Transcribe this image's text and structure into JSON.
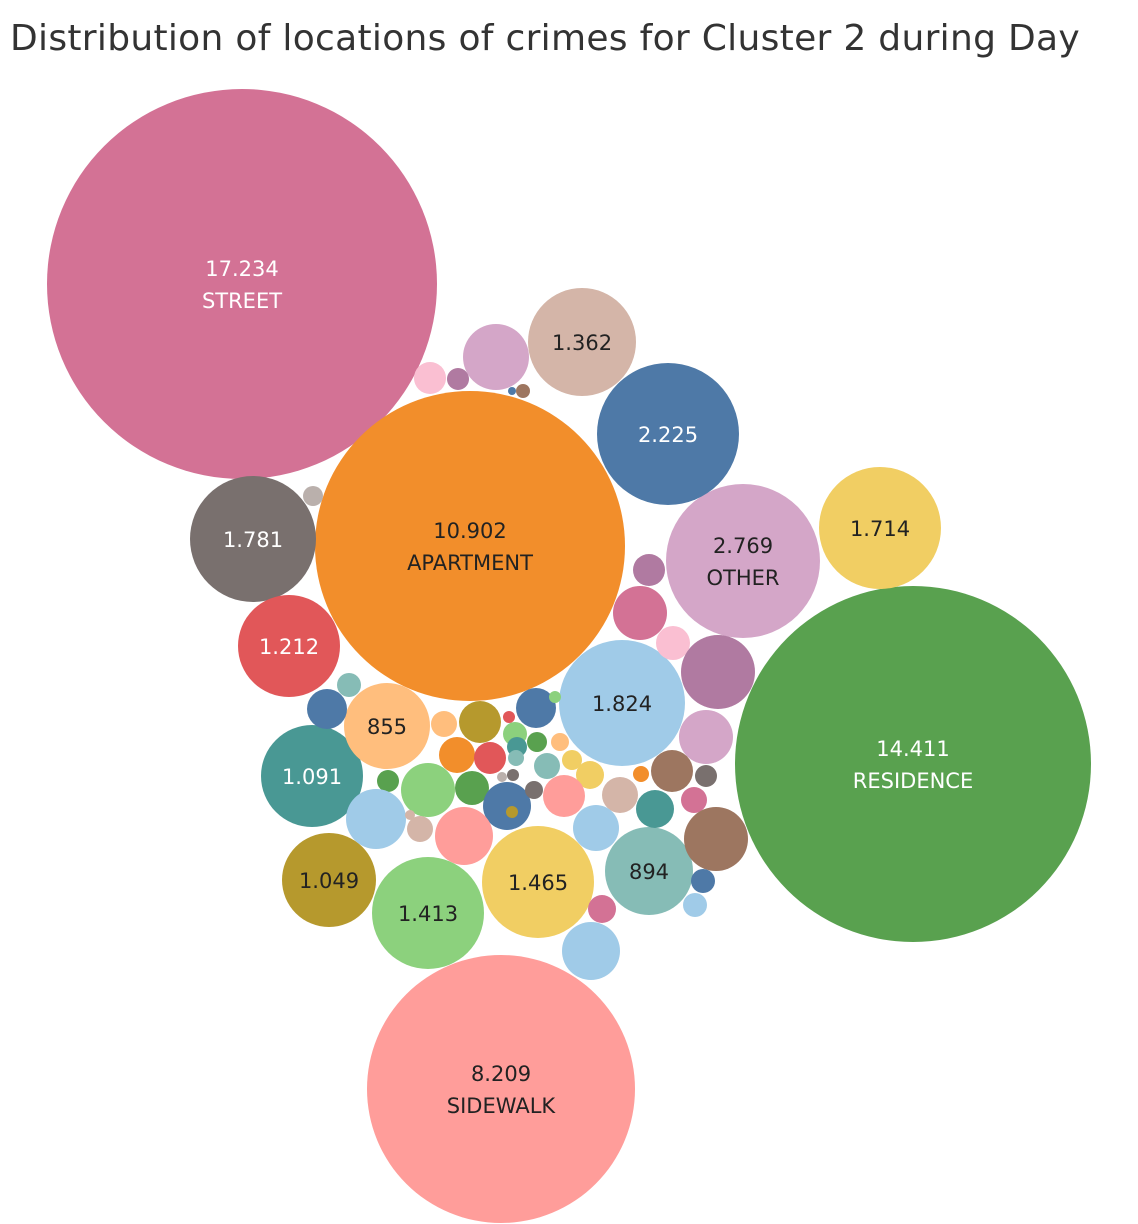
{
  "chart_data": {
    "type": "bubble",
    "title": "Distribution of locations of crimes for Cluster 2 during Day",
    "bubbles": [
      {
        "value": "17.234",
        "name": "STREET",
        "color": "#d37295",
        "label_color": "#ffffff"
      },
      {
        "value": "14.411",
        "name": "RESIDENCE",
        "color": "#59a14f",
        "label_color": "#ffffff"
      },
      {
        "value": "10.902",
        "name": "APARTMENT",
        "color": "#f28e2b",
        "label_color": "#222222"
      },
      {
        "value": "8.209",
        "name": "SIDEWALK",
        "color": "#ff9d9a",
        "label_color": "#222222"
      },
      {
        "value": "2.769",
        "name": "OTHER",
        "color": "#d4a6c8",
        "label_color": "#222222"
      },
      {
        "value": "2.225",
        "color": "#4e79a7",
        "label_color": "#ffffff"
      },
      {
        "value": "1.824",
        "color": "#a0cbe8",
        "label_color": "#222222"
      },
      {
        "value": "1.781",
        "color": "#79706e",
        "label_color": "#ffffff"
      },
      {
        "value": "1.714",
        "color": "#f1ce63",
        "label_color": "#222222"
      },
      {
        "value": "1.465",
        "color": "#f1ce63",
        "label_color": "#222222"
      },
      {
        "value": "1.413",
        "color": "#8cd17d",
        "label_color": "#222222"
      },
      {
        "value": "1.362",
        "color": "#d4b5a8",
        "label_color": "#222222"
      },
      {
        "value": "1.212",
        "color": "#e15759",
        "label_color": "#ffffff"
      },
      {
        "value": "1.091",
        "color": "#499894",
        "label_color": "#ffffff"
      },
      {
        "value": "1.049",
        "color": "#b6992d",
        "label_color": "#222222"
      },
      {
        "value": "894",
        "color": "#86bcb6",
        "label_color": "#222222"
      },
      {
        "value": "855",
        "color": "#ffbe7d",
        "label_color": "#222222"
      },
      {
        "color": "#d4a6c8"
      },
      {
        "color": "#fabfd2"
      },
      {
        "color": "#b07aa1"
      },
      {
        "color": "#9d7660"
      },
      {
        "color": "#4e79a7"
      },
      {
        "color": "#bab0ac"
      },
      {
        "color": "#b07aa1"
      },
      {
        "color": "#d37295"
      },
      {
        "color": "#fabfd2"
      },
      {
        "color": "#b07aa1"
      },
      {
        "color": "#d4a6c8"
      },
      {
        "color": "#86bcb6"
      },
      {
        "color": "#4e79a7"
      },
      {
        "color": "#ffbe7d"
      },
      {
        "color": "#b6992d"
      },
      {
        "color": "#4e79a7"
      },
      {
        "color": "#8cd17d"
      },
      {
        "color": "#59a14f"
      },
      {
        "color": "#f28e2b"
      },
      {
        "color": "#e15759"
      },
      {
        "color": "#ffbe7d"
      },
      {
        "color": "#f1ce63"
      },
      {
        "color": "#86bcb6"
      },
      {
        "color": "#499894"
      },
      {
        "color": "#f1ce63"
      },
      {
        "color": "#59a14f"
      },
      {
        "color": "#8cd17d"
      },
      {
        "color": "#59a14f"
      },
      {
        "color": "#a0cbe8"
      },
      {
        "color": "#d4b5a8"
      },
      {
        "color": "#4e79a7"
      },
      {
        "color": "#ff9d9a"
      },
      {
        "color": "#ff9d9a"
      },
      {
        "color": "#79706e"
      },
      {
        "color": "#d4b5a8"
      },
      {
        "color": "#9d7660"
      },
      {
        "color": "#79706e"
      },
      {
        "color": "#499894"
      },
      {
        "color": "#d37295"
      },
      {
        "color": "#a0cbe8"
      },
      {
        "color": "#9d7660"
      },
      {
        "color": "#4e79a7"
      },
      {
        "color": "#d37295"
      },
      {
        "color": "#a0cbe8"
      },
      {
        "color": "#a0cbe8"
      },
      {
        "color": "#79706e"
      },
      {
        "color": "#b6992d"
      },
      {
        "color": "#e15759"
      },
      {
        "color": "#86bcb6"
      },
      {
        "color": "#bab0ac"
      },
      {
        "color": "#d4b5a8"
      },
      {
        "color": "#8cd17d"
      },
      {
        "color": "#f28e2b"
      }
    ]
  }
}
